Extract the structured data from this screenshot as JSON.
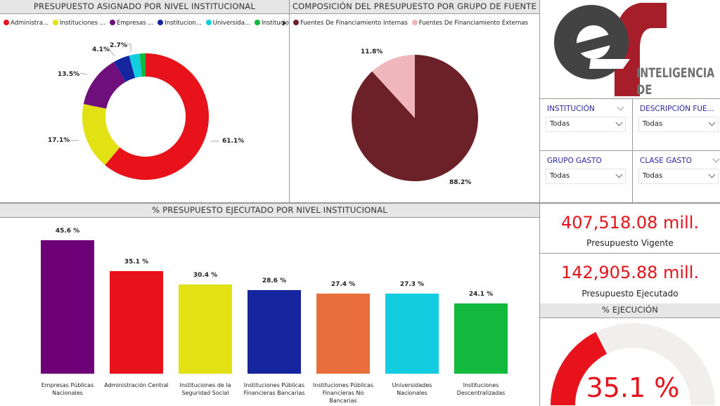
{
  "donut": {
    "title": "PRESUPUESTO ASIGNADO POR NIVEL INSTITUCIONAL",
    "legend": [
      {
        "label": "Administra...",
        "color": "#e8131a"
      },
      {
        "label": "Instituciones ...",
        "color": "#e1e113"
      },
      {
        "label": "Empresas ...",
        "color": "#6e0f7c"
      },
      {
        "label": "Institucion...",
        "color": "#14259d"
      },
      {
        "label": "Universida...",
        "color": "#12cde0"
      },
      {
        "label": "Institucion...",
        "color": "#12b93c"
      }
    ],
    "chart_data": {
      "type": "pie",
      "values": [
        61.1,
        17.1,
        13.5,
        4.1,
        2.7,
        1.5
      ],
      "labels": [
        "61.1%",
        "17.1%",
        "13.5%",
        "4.1%",
        "2.7%",
        ""
      ]
    }
  },
  "pie": {
    "title": "COMPOSICIÓN DEL PRESUPUESTO POR GRUPO DE FUENTE",
    "legend": [
      {
        "label": "Fuentes De Financiamiento Internas",
        "color": "#6b2127"
      },
      {
        "label": "Fuentes De Financiamiento Externas",
        "color": "#efb6bb"
      }
    ],
    "chart_data": {
      "type": "pie",
      "values": [
        88.2,
        11.8
      ],
      "labels": [
        "88.2%",
        "11.8%"
      ]
    }
  },
  "logo": {
    "line1": "INTELIGENCIA",
    "line2": "DE NEGOCIOS"
  },
  "slicers": [
    {
      "title": "INSTITUCIÓN",
      "value": "Todas"
    },
    {
      "title": "DESCRIPCIÓN FUE...",
      "value": "Todas"
    },
    {
      "title": "GRUPO GASTO",
      "value": "Todas"
    },
    {
      "title": "CLASE GASTO",
      "value": "Todas"
    }
  ],
  "bars": {
    "title": "% PRESUPUESTO EJECUTADO POR NIVEL INSTITUCIONAL",
    "chart_data": {
      "type": "bar",
      "categories": [
        "Empresas Públicas Nacionales",
        "Administración Central",
        "Instituciones de la Seguridad Social",
        "Instituciones Públicas Financieras Bancarias",
        "Instituciones Públicas Financieras No Bancarias",
        "Universidades Nacionales",
        "Instituciones Descentralizadas"
      ],
      "values": [
        45.6,
        35.1,
        30.4,
        28.6,
        27.4,
        27.3,
        24.1
      ],
      "labels": [
        "45.6 %",
        "35.1 %",
        "30.4 %",
        "28.6 %",
        "27.4 %",
        "27.3 %",
        "24.1 %"
      ],
      "colors": [
        "#6e0077",
        "#e8131a",
        "#e1e113",
        "#14259d",
        "#e86f3c",
        "#12cde0",
        "#12b93c"
      ]
    }
  },
  "kpis": [
    {
      "value": "407,518.08 mill.",
      "label": "Presupuesto Vigente"
    },
    {
      "value": "142,905.88 mill.",
      "label": "Presupuesto Ejecutado"
    }
  ],
  "gauge": {
    "title": "% EJECUCIÓN",
    "value": 35.1,
    "label": "35.1 %",
    "color": "#e8131a",
    "track": "#f0efee"
  }
}
